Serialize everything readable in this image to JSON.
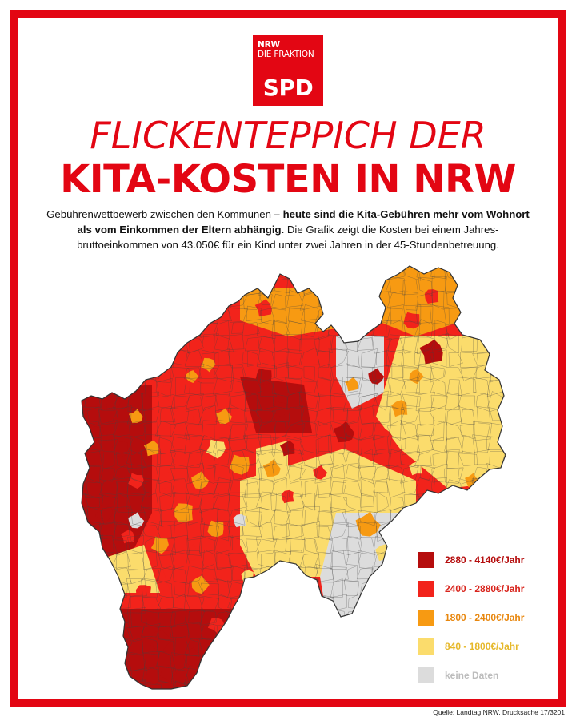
{
  "logo": {
    "line1": "NRW",
    "line2": "DIE FRAKTION",
    "mark": "SPD"
  },
  "title": {
    "line1": "FLICKENTEPPICH DER",
    "line2": "KITA-KOSTEN IN NRW"
  },
  "intro": {
    "part1": "Gebührenwettbewerb zwischen den Kommunen ",
    "part2_bold": "– heute sind die Kita-Gebühren mehr vom Wohnort als vom Einkommen der Eltern abhängig.",
    "part3": " Die Grafik zeigt die Kosten bei einem Jahres-bruttoeinkommen von 43.050€ für ein Kind unter zwei Jahren in der 45-Stundenbetreuung."
  },
  "legend": [
    {
      "label": "2880 - 4140€/Jahr",
      "color": "#b50d0d",
      "text_color": "#b50d0d"
    },
    {
      "label": "2400 - 2880€/Jahr",
      "color": "#f2231b",
      "text_color": "#d8231b"
    },
    {
      "label": "1800 - 2400€/Jahr",
      "color": "#f79a12",
      "text_color": "#e8870e"
    },
    {
      "label": "840 - 1800€/Jahr",
      "color": "#fbdc6c",
      "text_color": "#e6b82a"
    },
    {
      "label": "keine Daten",
      "color": "#dcdcdc",
      "text_color": "#bcbcbc"
    }
  ],
  "colors": {
    "brand": "#e30613",
    "outline": "#444444"
  },
  "source": "Quelle: Landtag NRW, Drucksache 17/3201"
}
